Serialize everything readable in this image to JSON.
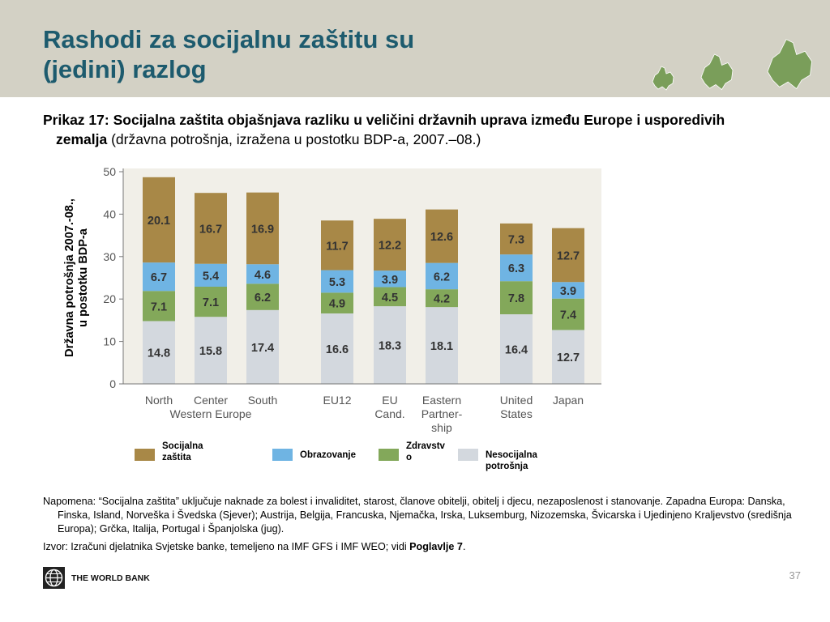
{
  "slide": {
    "title_lines": [
      "Rashodi za socijalnu zaštitu su",
      "(jedini) razlog"
    ],
    "caption_bold": "Prikaz 17: Socijalna zaštita objašnjava razliku u veličini državnih uprava između Europe i usporedivih zemalja",
    "caption_normal": " (državna potrošnja, izražena u postotku BDP-a,  2007.–08.)",
    "note": "Napomena: “Socijalna zaštita” uključuje naknade za bolest i invaliditet, starost, članove obitelji, obitelj i djecu, nezaposlenost i stanovanje. Zapadna Europa: Danska, Finska, Island, Norveška i Švedska (Sjever); Austrija, Belgija, Francuska, Njemačka, Irska, Luksemburg, Nizozemska, Švicarska i Ujedinjeno Kraljevstvo (središnja Europa); Grčka, Italija, Portugal i Španjolska (jug).",
    "source_prefix": "Izvor: Izračuni djelatnika Svjetske banke, temeljeno na IMF GFS i IMF WEO; vidi ",
    "source_bold": "Poglavlje 7",
    "source_suffix": ".",
    "logo_text": "THE WORLD BANK",
    "page_number": "37"
  },
  "colors": {
    "header_band": "#d3d1c5",
    "title": "#1d5b6e",
    "social": "#a88847",
    "education": "#6fb4e3",
    "health": "#83a85a",
    "nonsocial": "#d3d8de",
    "map_green": "#7a9e5a"
  },
  "chart_data": {
    "type": "bar",
    "stacked": true,
    "ylabel_lines": [
      "Državna potrošnja 2007.-08.,",
      "u postotku BDP-a"
    ],
    "ylim": [
      0,
      50
    ],
    "yticks": [
      "0",
      "10",
      "20",
      "30",
      "40",
      "50"
    ],
    "categories": [
      [
        "North"
      ],
      [
        "Center"
      ],
      [
        "South"
      ],
      [
        "EU12"
      ],
      [
        "EU",
        "Cand."
      ],
      [
        "Eastern",
        "Partner-",
        "ship"
      ],
      [
        "United",
        "States"
      ],
      [
        "Japan"
      ]
    ],
    "group_label": "Western Europe",
    "series": [
      {
        "name": "Nesocijalna potrošnja",
        "color_key": "nonsocial",
        "values": [
          14.8,
          15.8,
          17.4,
          16.6,
          18.3,
          18.1,
          16.4,
          12.7
        ],
        "labels": [
          "14.8",
          "15.8",
          "17.4",
          "16.6",
          "18.3",
          "18.1",
          "16.4",
          "12.7"
        ]
      },
      {
        "name": "Zdravstvo",
        "color_key": "health",
        "values": [
          7.1,
          7.1,
          6.2,
          4.9,
          4.5,
          4.2,
          7.8,
          7.4
        ],
        "labels": [
          "7.1",
          "7.1",
          "6.2",
          "4.9",
          "4.5",
          "4.2",
          "7.8",
          "7.4"
        ]
      },
      {
        "name": "Obrazovanje",
        "color_key": "education",
        "values": [
          6.7,
          5.4,
          4.6,
          5.3,
          3.9,
          6.2,
          6.3,
          3.9
        ],
        "labels": [
          "6.7",
          "5.4",
          "4.6",
          "5.3",
          "3.9",
          "6.2",
          "6.3",
          "3.9"
        ]
      },
      {
        "name": "Socijalna zaštita",
        "color_key": "social",
        "values": [
          20.1,
          16.7,
          16.9,
          11.7,
          12.2,
          12.6,
          7.3,
          12.7
        ],
        "labels": [
          "20.1",
          "16.7",
          "16.9",
          "11.7",
          "12.2",
          "12.6",
          "7.3",
          "12.7"
        ]
      }
    ],
    "legend": [
      {
        "lines": [
          "Socijalna",
          "zaštita"
        ],
        "color_key": "social"
      },
      {
        "lines": [
          "Obrazovanje"
        ],
        "color_key": "education"
      },
      {
        "lines": [
          "Zdravstv",
          "o"
        ],
        "color_key": "health"
      },
      {
        "lines": [
          "Nesocijalna potrošnja"
        ],
        "color_key": "nonsocial"
      }
    ],
    "legend_position": "bottom",
    "grid": false
  }
}
